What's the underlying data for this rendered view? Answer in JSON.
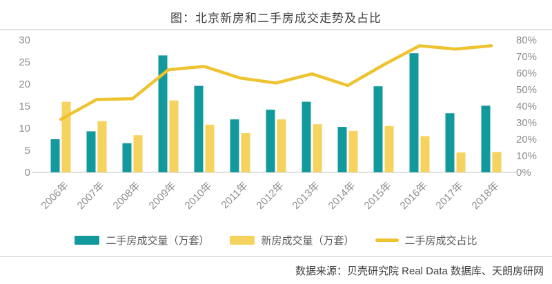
{
  "header": {
    "title": "图：北京新房和二手房成交走势及占比"
  },
  "legend": {
    "items": [
      {
        "label": "二手房成交量（万套）",
        "swatch": "teal-bar-swatch",
        "color": "#12999B"
      },
      {
        "label": "新房成交量（万套）",
        "swatch": "yellow-bar-swatch",
        "color": "#F6D25E"
      },
      {
        "label": "二手房成交占比",
        "swatch": "yellow-line-swatch",
        "color": "#EFC32F"
      }
    ]
  },
  "footer": {
    "source": "数据来源：贝壳研究院 Real Data 数据库、天朗房研网"
  },
  "colors": {
    "secondhand_bar": "#12999B",
    "newhome_bar": "#F6D25E",
    "share_line": "#EFC32F",
    "axis_text": "#8d8d8d",
    "axis_line": "#d8d8d8"
  },
  "chart_data": {
    "type": "bar",
    "subtype": "grouped-bars-with-line-combo",
    "title": "图：北京新房和二手房成交走势及占比",
    "categories": [
      "2006年",
      "2007年",
      "2008年",
      "2009年",
      "2010年",
      "2011年",
      "2012年",
      "2013年",
      "2014年",
      "2015年",
      "2016年",
      "2017年",
      "2018年"
    ],
    "series": [
      {
        "name": "二手房成交量（万套）",
        "type": "bar",
        "axis": "left",
        "color": "#12999B",
        "values": [
          7.5,
          9.3,
          6.6,
          26.5,
          19.6,
          12.0,
          14.2,
          16.0,
          10.3,
          19.5,
          27.0,
          13.4,
          15.1
        ]
      },
      {
        "name": "新房成交量（万套）",
        "type": "bar",
        "axis": "left",
        "color": "#F6D25E",
        "values": [
          16.0,
          11.6,
          8.4,
          16.3,
          10.8,
          8.9,
          12.0,
          10.9,
          9.4,
          10.5,
          8.2,
          4.5,
          4.6
        ]
      },
      {
        "name": "二手房成交占比",
        "type": "line",
        "axis": "right",
        "color": "#EFC32F",
        "values": [
          32,
          44,
          44.5,
          62,
          64,
          57,
          54,
          59.5,
          52.5,
          65,
          76.5,
          74.5,
          76.5
        ]
      }
    ],
    "left_axis": {
      "min": 0,
      "max": 30,
      "step": 5,
      "suffix": ""
    },
    "right_axis": {
      "min": 0,
      "max": 80,
      "step": 10,
      "suffix": "%"
    },
    "grid": false,
    "legend_position": "bottom"
  }
}
